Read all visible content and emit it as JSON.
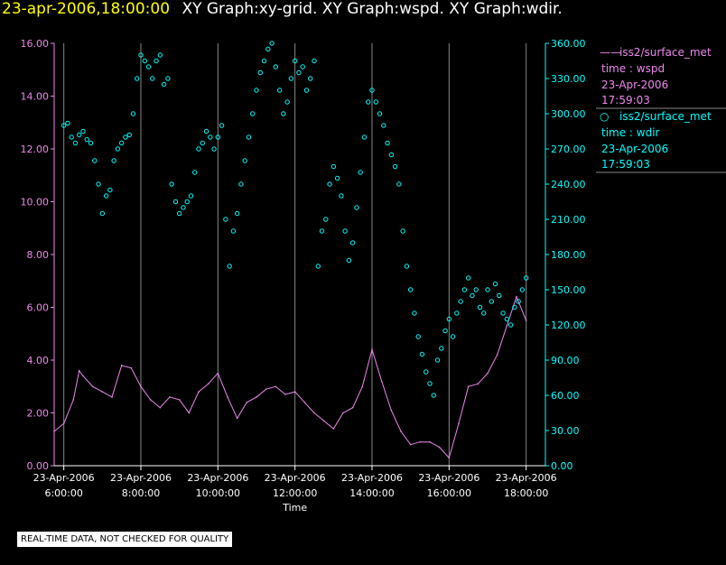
{
  "header": {
    "timestamp": "23-apr-2006,18:00:00",
    "title": "XY Graph:xy-grid.  XY Graph:wspd.  XY Graph:wdir."
  },
  "legend": [
    {
      "symbol": "——",
      "source": "iss2/surface_met",
      "var": "time : wspd",
      "date": "23-Apr-2006",
      "time": "17:59:03",
      "color": "#ee88ee"
    },
    {
      "symbol": "○",
      "source": "iss2/surface_met",
      "var": "time : wdir",
      "date": "23-Apr-2006",
      "time": "17:59:03",
      "color": "#00ffff"
    }
  ],
  "footer": {
    "disclaimer": "REAL-TIME DATA, NOT CHECKED FOR QUALITY"
  },
  "chart_data": {
    "type": "line+scatter",
    "xlabel": "Time",
    "xlim_hours": [
      5.75,
      18.5
    ],
    "x_ticks": [
      {
        "hour": 6,
        "date": "23-Apr-2006",
        "time": "6:00:00"
      },
      {
        "hour": 8,
        "date": "23-Apr-2006",
        "time": "8:00:00"
      },
      {
        "hour": 10,
        "date": "23-Apr-2006",
        "time": "10:00:00"
      },
      {
        "hour": 12,
        "date": "23-Apr-2006",
        "time": "12:00:00"
      },
      {
        "hour": 14,
        "date": "23-Apr-2006",
        "time": "14:00:00"
      },
      {
        "hour": 16,
        "date": "23-Apr-2006",
        "time": "16:00:00"
      },
      {
        "hour": 18,
        "date": "23-Apr-2006",
        "time": "18:00:00"
      }
    ],
    "left_axis": {
      "label": "wspd",
      "range": [
        0,
        16
      ],
      "ticks": [
        "0.00",
        "2.00",
        "4.00",
        "6.00",
        "8.00",
        "10.00",
        "12.00",
        "14.00",
        "16.00"
      ],
      "color": "#ee88ee"
    },
    "right_axis": {
      "label": "wdir",
      "range": [
        0,
        360
      ],
      "ticks": [
        "0.00",
        "30.00",
        "60.00",
        "90.00",
        "120.00",
        "150.00",
        "180.00",
        "210.00",
        "240.00",
        "270.00",
        "300.00",
        "330.00",
        "360.00"
      ],
      "color": "#00ffff"
    },
    "series": [
      {
        "name": "iss2/surface_met time : wspd",
        "style": "line",
        "axis": "left",
        "x": [
          5.75,
          6.0,
          6.25,
          6.4,
          6.5,
          6.75,
          7.0,
          7.25,
          7.5,
          7.75,
          8.0,
          8.25,
          8.5,
          8.75,
          9.0,
          9.25,
          9.5,
          9.75,
          10.0,
          10.25,
          10.5,
          10.75,
          11.0,
          11.25,
          11.5,
          11.75,
          12.0,
          12.25,
          12.5,
          12.75,
          13.0,
          13.25,
          13.5,
          13.75,
          14.0,
          14.25,
          14.5,
          14.75,
          15.0,
          15.25,
          15.5,
          15.75,
          16.0,
          16.25,
          16.5,
          16.75,
          17.0,
          17.25,
          17.5,
          17.75,
          18.0
        ],
        "y": [
          1.3,
          1.6,
          2.5,
          3.6,
          3.4,
          3.0,
          2.8,
          2.6,
          3.8,
          3.7,
          3.0,
          2.5,
          2.2,
          2.6,
          2.5,
          2.0,
          2.8,
          3.1,
          3.5,
          2.6,
          1.8,
          2.4,
          2.6,
          2.9,
          3.0,
          2.7,
          2.8,
          2.4,
          2.0,
          1.7,
          1.4,
          2.0,
          2.2,
          3.0,
          4.4,
          3.2,
          2.1,
          1.3,
          0.8,
          0.9,
          0.9,
          0.7,
          0.3,
          1.6,
          3.0,
          3.1,
          3.5,
          4.2,
          5.3,
          6.4,
          5.5
        ]
      },
      {
        "name": "iss2/surface_met time : wdir",
        "style": "markers",
        "axis": "right",
        "x": [
          6.0,
          6.1,
          6.2,
          6.3,
          6.4,
          6.5,
          6.6,
          6.7,
          6.8,
          6.9,
          7.0,
          7.1,
          7.2,
          7.3,
          7.4,
          7.5,
          7.6,
          7.7,
          7.8,
          7.9,
          8.0,
          8.1,
          8.2,
          8.3,
          8.4,
          8.5,
          8.6,
          8.7,
          8.8,
          8.9,
          9.0,
          9.1,
          9.2,
          9.3,
          9.4,
          9.5,
          9.6,
          9.7,
          9.8,
          9.9,
          10.0,
          10.1,
          10.2,
          10.3,
          10.4,
          10.5,
          10.6,
          10.7,
          10.8,
          10.9,
          11.0,
          11.1,
          11.2,
          11.3,
          11.4,
          11.5,
          11.6,
          11.7,
          11.8,
          11.9,
          12.0,
          12.1,
          12.2,
          12.3,
          12.4,
          12.5,
          12.6,
          12.7,
          12.8,
          12.9,
          13.0,
          13.1,
          13.2,
          13.3,
          13.4,
          13.5,
          13.6,
          13.7,
          13.8,
          13.9,
          14.0,
          14.1,
          14.2,
          14.3,
          14.4,
          14.5,
          14.6,
          14.7,
          14.8,
          14.9,
          15.0,
          15.1,
          15.2,
          15.3,
          15.4,
          15.5,
          15.6,
          15.7,
          15.8,
          15.9,
          16.0,
          16.1,
          16.2,
          16.3,
          16.4,
          16.5,
          16.6,
          16.7,
          16.8,
          16.9,
          17.0,
          17.1,
          17.2,
          17.3,
          17.4,
          17.5,
          17.6,
          17.7,
          17.8,
          17.9,
          18.0
        ],
        "y": [
          290,
          292,
          280,
          275,
          282,
          285,
          278,
          275,
          260,
          240,
          215,
          230,
          235,
          260,
          270,
          275,
          280,
          282,
          300,
          330,
          350,
          345,
          340,
          330,
          345,
          350,
          325,
          330,
          240,
          225,
          215,
          220,
          225,
          230,
          250,
          270,
          275,
          285,
          280,
          270,
          280,
          290,
          210,
          170,
          200,
          215,
          240,
          260,
          280,
          300,
          320,
          335,
          345,
          355,
          360,
          340,
          320,
          300,
          310,
          330,
          345,
          335,
          340,
          320,
          330,
          345,
          170,
          200,
          210,
          240,
          255,
          245,
          230,
          200,
          175,
          190,
          220,
          250,
          280,
          310,
          320,
          310,
          300,
          290,
          275,
          265,
          255,
          240,
          200,
          170,
          150,
          130,
          110,
          95,
          80,
          70,
          60,
          90,
          100,
          115,
          125,
          110,
          130,
          140,
          150,
          160,
          145,
          150,
          135,
          130,
          150,
          140,
          155,
          145,
          130,
          125,
          120,
          135,
          140,
          150,
          160
        ]
      }
    ]
  }
}
